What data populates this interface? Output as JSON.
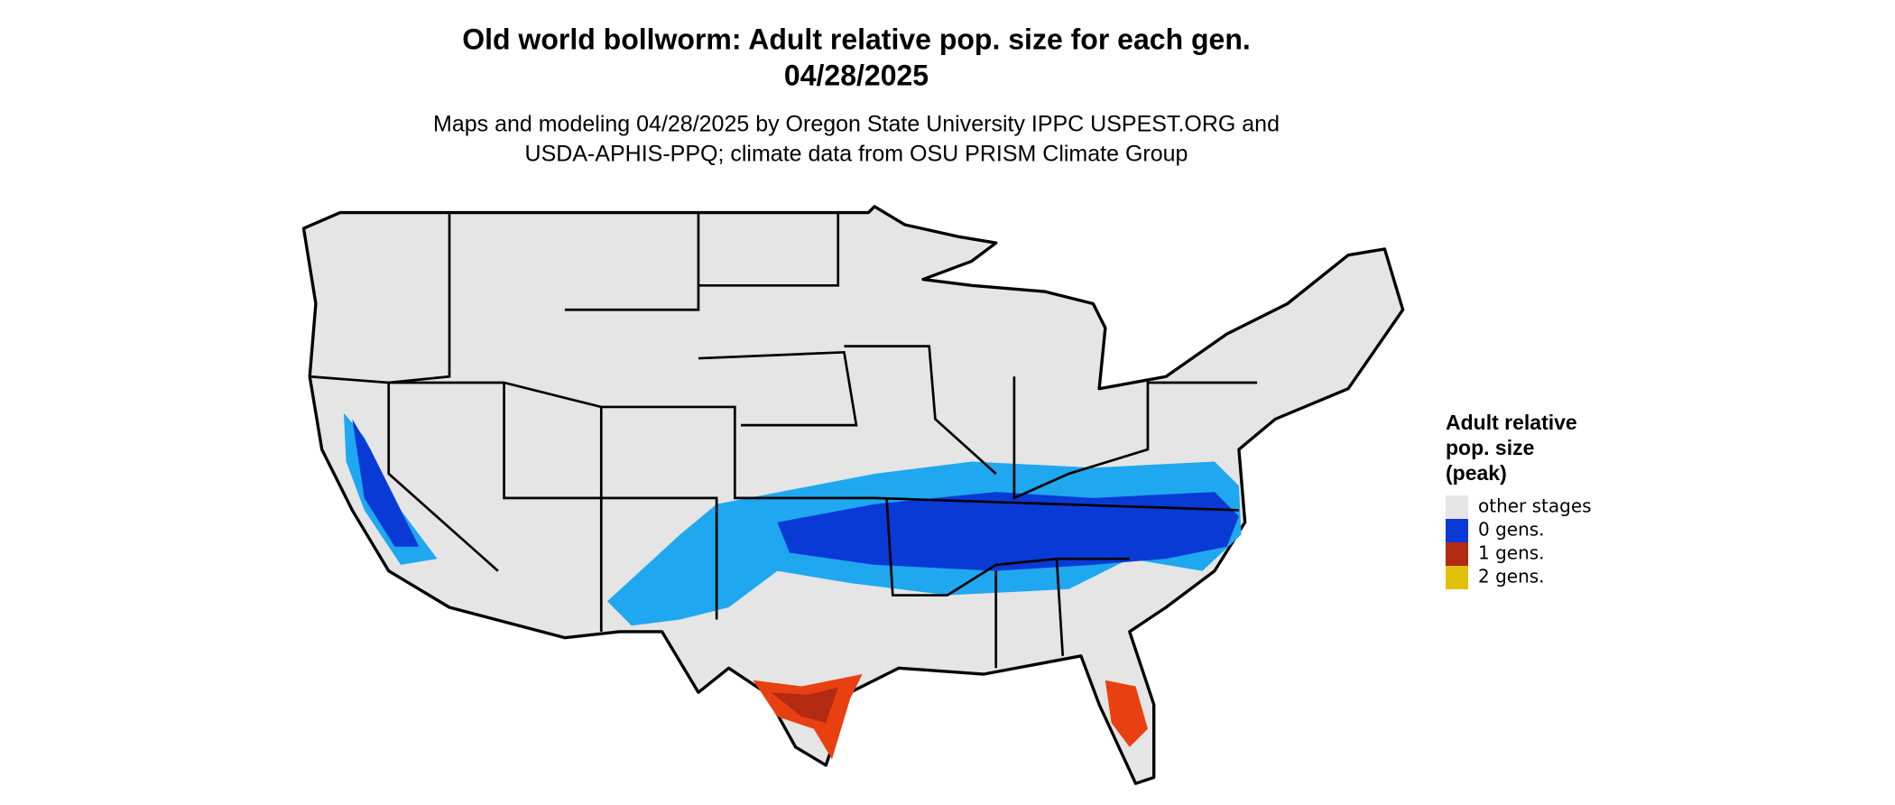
{
  "header": {
    "title_lines": [
      "Old world bollworm: Adult relative pop. size for each gen.",
      "04/28/2025"
    ],
    "subtitle_lines": [
      "Maps and modeling 04/28/2025 by Oregon State University IPPC USPEST.ORG and",
      "USDA-APHIS-PPQ; climate data from OSU PRISM Climate Group"
    ]
  },
  "legend": {
    "title_lines": [
      "Adult relative",
      "pop. size",
      "(peak)"
    ],
    "items": [
      {
        "label": "other stages",
        "color": "#e5e5e5"
      },
      {
        "label": "0 gens.",
        "color": "#0a3ad6"
      },
      {
        "label": "1 gens.",
        "color": "#b22a12"
      },
      {
        "label": "2 gens.",
        "color": "#e2c10a"
      }
    ]
  }
}
